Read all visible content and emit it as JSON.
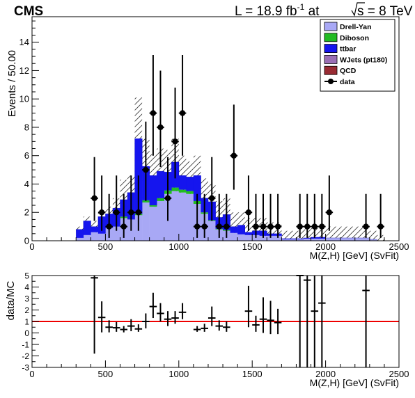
{
  "header": {
    "experiment": "CMS",
    "lumi_prefix": "L = 18.9 fb",
    "lumi_exp": "-1",
    "lumi_mid": " at ",
    "sqrt_s": "s",
    "lumi_suffix": " = 8 TeV"
  },
  "chart_data": [
    {
      "type": "bar",
      "stacked": true,
      "xlabel": "M(Z,H) [GeV] (SvFit)",
      "ylabel": "Events / 50.00",
      "xlim": [
        0,
        2500
      ],
      "ylim": [
        0,
        15.8
      ],
      "x_ticks": [
        0,
        500,
        1000,
        1500,
        2000,
        2500
      ],
      "y_ticks": [
        0,
        2,
        4,
        6,
        8,
        10,
        12,
        14
      ],
      "legend_position": "top-right",
      "colors": {
        "Drell-Yan": "#a8a8f5",
        "Diboson": "#22bb22",
        "ttbar": "#1515ee",
        "WJets (pt180)": "#9b6fb5",
        "QCD": "#992b33",
        "data": "#000000",
        "uncertainty": "#333333"
      },
      "legend": [
        "Drell-Yan",
        "Diboson",
        "ttbar",
        "WJets (pt180)",
        "QCD",
        "data"
      ],
      "bin_edges": [
        200,
        250,
        300,
        350,
        400,
        450,
        500,
        550,
        600,
        650,
        700,
        750,
        800,
        850,
        900,
        950,
        1000,
        1050,
        1100,
        1150,
        1200,
        1250,
        1300,
        1350,
        1400,
        1450,
        1500,
        1550,
        1600,
        1650,
        1700,
        1750,
        1800,
        1850,
        1900,
        1950,
        2000,
        2050,
        2100,
        2150,
        2200,
        2250,
        2300,
        2350,
        2400
      ],
      "series": [
        {
          "name": "Drell-Yan",
          "values": [
            0,
            0,
            0.2,
            0.4,
            0.6,
            0.5,
            0.9,
            1.0,
            1.6,
            1.5,
            1.8,
            2.7,
            2.4,
            2.8,
            3.3,
            3.5,
            3.4,
            3.3,
            2.6,
            1.9,
            1.4,
            0.8,
            0.7,
            0.55,
            0.45,
            0.4,
            0.4,
            0.35,
            0.35,
            0.35,
            0.1,
            0.1,
            0.1,
            0.15,
            0.15,
            0.15,
            0.2,
            0.2,
            0.2,
            0.2,
            0.2,
            0.2,
            0.1,
            0
          ]
        },
        {
          "name": "Diboson",
          "values": [
            0,
            0,
            0,
            0,
            0,
            0,
            0,
            0,
            0.1,
            0,
            0.1,
            0.15,
            0.1,
            0.2,
            0.25,
            0.25,
            0.2,
            0.2,
            0.2,
            0.1,
            0.05,
            0.05,
            0.05,
            0,
            0,
            0,
            0,
            0,
            0,
            0,
            0,
            0,
            0,
            0,
            0,
            0,
            0,
            0,
            0,
            0,
            0,
            0,
            0,
            0
          ]
        },
        {
          "name": "ttbar",
          "values": [
            0,
            0,
            0.6,
            1.0,
            0.4,
            1.2,
            1.0,
            1.3,
            1.2,
            1.9,
            5.3,
            2.4,
            2.1,
            1.9,
            1.3,
            1.8,
            1.0,
            1.0,
            1.8,
            1.0,
            1.3,
            0.8,
            1.1,
            0.45,
            0.65,
            0.2,
            0.3,
            0.35,
            0.15,
            0.15,
            0.05,
            0.05,
            0.05,
            0.05,
            0.1,
            0.1,
            0,
            0,
            0,
            0,
            0,
            0,
            0,
            0
          ]
        },
        {
          "name": "WJets (pt180)",
          "values": [
            0,
            0,
            0,
            0,
            0,
            0,
            0,
            0,
            0,
            0,
            0,
            0,
            0,
            0,
            0,
            0,
            0,
            0,
            0,
            0,
            0,
            0,
            0,
            0,
            0,
            0,
            0,
            0,
            0,
            0,
            0,
            0,
            0,
            0,
            0,
            0,
            0,
            0,
            0,
            0,
            0,
            0,
            0,
            0
          ]
        },
        {
          "name": "QCD",
          "values": [
            0,
            0,
            0,
            0,
            0,
            0,
            0,
            0,
            0,
            0,
            0,
            0,
            0,
            0,
            0,
            0,
            0,
            0,
            0,
            0,
            0,
            0,
            0,
            0,
            0,
            0,
            0,
            0,
            0,
            0,
            0,
            0,
            0,
            0,
            0,
            0,
            0,
            0,
            0,
            0,
            0,
            0,
            0,
            0
          ]
        }
      ],
      "uncertainty_band": {
        "up": [
          0,
          0,
          1.0,
          1.7,
          1.4,
          2.2,
          2.4,
          3.0,
          4.3,
          4.6,
          10.1,
          7.2,
          6.1,
          6.5,
          6.4,
          7.2,
          6.0,
          5.6,
          6.0,
          4.4,
          4.0,
          2.8,
          3.0,
          2.0,
          2.0,
          1.6,
          1.6,
          1.6,
          1.3,
          1.3,
          0.7,
          0.7,
          0.7,
          0.8,
          0.9,
          0.9,
          1.0,
          1.0,
          1.0,
          1.0,
          1.0,
          1.0,
          0.7,
          0.4
        ],
        "down": [
          0,
          0,
          0.4,
          0.7,
          0.5,
          0.7,
          0.9,
          1.0,
          1.2,
          1.4,
          3.0,
          2.2,
          2.2,
          2.6,
          3.0,
          3.2,
          3.0,
          2.9,
          2.6,
          1.9,
          1.4,
          0.8,
          0.8,
          0.5,
          0.5,
          0.3,
          0.4,
          0.3,
          0.2,
          0.2,
          0.05,
          0.05,
          0.05,
          0.1,
          0.1,
          0.1,
          0.1,
          0.1,
          0.1,
          0.1,
          0.1,
          0.1,
          0.05,
          0
        ]
      },
      "data_points": [
        {
          "x": 425,
          "y": 3,
          "err_lo": 1.6,
          "err_hi": 2.9
        },
        {
          "x": 475,
          "y": 2,
          "err_lo": 1.3,
          "err_hi": 2.6
        },
        {
          "x": 525,
          "y": 1,
          "err_lo": 0.8,
          "err_hi": 2.3
        },
        {
          "x": 575,
          "y": 2,
          "err_lo": 1.3,
          "err_hi": 2.6
        },
        {
          "x": 625,
          "y": 1,
          "err_lo": 0.8,
          "err_hi": 2.3
        },
        {
          "x": 675,
          "y": 2,
          "err_lo": 1.3,
          "err_hi": 2.6
        },
        {
          "x": 725,
          "y": 2,
          "err_lo": 1.3,
          "err_hi": 2.6
        },
        {
          "x": 775,
          "y": 5,
          "err_lo": 2.2,
          "err_hi": 3.4
        },
        {
          "x": 825,
          "y": 9,
          "err_lo": 3.0,
          "err_hi": 4.1
        },
        {
          "x": 875,
          "y": 8,
          "err_lo": 2.8,
          "err_hi": 4.0
        },
        {
          "x": 925,
          "y": 3,
          "err_lo": 1.6,
          "err_hi": 2.9
        },
        {
          "x": 975,
          "y": 7,
          "err_lo": 2.6,
          "err_hi": 3.8
        },
        {
          "x": 1025,
          "y": 9,
          "err_lo": 3.0,
          "err_hi": 4.1
        },
        {
          "x": 1125,
          "y": 1,
          "err_lo": 0.8,
          "err_hi": 2.3
        },
        {
          "x": 1175,
          "y": 1,
          "err_lo": 0.8,
          "err_hi": 2.3
        },
        {
          "x": 1225,
          "y": 3,
          "err_lo": 1.6,
          "err_hi": 2.9
        },
        {
          "x": 1275,
          "y": 1,
          "err_lo": 0.8,
          "err_hi": 2.3
        },
        {
          "x": 1325,
          "y": 1,
          "err_lo": 0.8,
          "err_hi": 2.3
        },
        {
          "x": 1375,
          "y": 6,
          "err_lo": 2.4,
          "err_hi": 3.6
        },
        {
          "x": 1475,
          "y": 2,
          "err_lo": 1.3,
          "err_hi": 2.6
        },
        {
          "x": 1525,
          "y": 1,
          "err_lo": 0.8,
          "err_hi": 2.3
        },
        {
          "x": 1575,
          "y": 1,
          "err_lo": 0.8,
          "err_hi": 2.3
        },
        {
          "x": 1625,
          "y": 1,
          "err_lo": 0.8,
          "err_hi": 2.3
        },
        {
          "x": 1675,
          "y": 1,
          "err_lo": 0.8,
          "err_hi": 2.3
        },
        {
          "x": 1825,
          "y": 1,
          "err_lo": 0.8,
          "err_hi": 2.3
        },
        {
          "x": 1875,
          "y": 1,
          "err_lo": 0.8,
          "err_hi": 2.3
        },
        {
          "x": 1925,
          "y": 1,
          "err_lo": 0.8,
          "err_hi": 2.3
        },
        {
          "x": 1975,
          "y": 1,
          "err_lo": 0.8,
          "err_hi": 2.3
        },
        {
          "x": 2025,
          "y": 2,
          "err_lo": 1.3,
          "err_hi": 2.6
        },
        {
          "x": 2275,
          "y": 1,
          "err_lo": 0.8,
          "err_hi": 2.3
        },
        {
          "x": 2375,
          "y": 1,
          "err_lo": 0.8,
          "err_hi": 2.3
        }
      ]
    },
    {
      "type": "scatter",
      "xlabel": "M(Z,H) [GeV] (SvFit)",
      "ylabel": "data/MC",
      "xlim": [
        0,
        2500
      ],
      "ylim": [
        -3,
        5
      ],
      "x_ticks": [
        0,
        500,
        1000,
        1500,
        2000,
        2500
      ],
      "y_ticks": [
        -3,
        -2,
        -1,
        0,
        1,
        2,
        3,
        4,
        5
      ],
      "reference_line": 1,
      "reference_line_color": "#ee0000",
      "points": [
        {
          "x": 425,
          "y": 4.8,
          "err_lo": 6.6,
          "err_hi": 1.0
        },
        {
          "x": 475,
          "y": 1.35,
          "err_lo": 1.3,
          "err_hi": 1.4
        },
        {
          "x": 525,
          "y": 0.5,
          "err_lo": 0.45,
          "err_hi": 0.6
        },
        {
          "x": 575,
          "y": 0.45,
          "err_lo": 0.35,
          "err_hi": 0.5
        },
        {
          "x": 625,
          "y": 0.3,
          "err_lo": 0.25,
          "err_hi": 0.3
        },
        {
          "x": 675,
          "y": 0.6,
          "err_lo": 0.45,
          "err_hi": 0.6
        },
        {
          "x": 725,
          "y": 0.35,
          "err_lo": 0.25,
          "err_hi": 0.4
        },
        {
          "x": 775,
          "y": 1.0,
          "err_lo": 0.6,
          "err_hi": 0.7
        },
        {
          "x": 825,
          "y": 2.3,
          "err_lo": 1.0,
          "err_hi": 1.2
        },
        {
          "x": 875,
          "y": 1.7,
          "err_lo": 0.7,
          "err_hi": 0.9
        },
        {
          "x": 925,
          "y": 1.2,
          "err_lo": 0.6,
          "err_hi": 0.7
        },
        {
          "x": 975,
          "y": 1.3,
          "err_lo": 0.5,
          "err_hi": 0.6
        },
        {
          "x": 1025,
          "y": 1.8,
          "err_lo": 0.6,
          "err_hi": 0.8
        },
        {
          "x": 1125,
          "y": 0.3,
          "err_lo": 0.2,
          "err_hi": 0.3
        },
        {
          "x": 1175,
          "y": 0.4,
          "err_lo": 0.3,
          "err_hi": 0.4
        },
        {
          "x": 1225,
          "y": 1.3,
          "err_lo": 0.7,
          "err_hi": 1.0
        },
        {
          "x": 1275,
          "y": 0.6,
          "err_lo": 0.4,
          "err_hi": 0.5
        },
        {
          "x": 1325,
          "y": 0.5,
          "err_lo": 0.4,
          "err_hi": 0.5
        },
        {
          "x": 1475,
          "y": 1.9,
          "err_lo": 1.4,
          "err_hi": 2.2
        },
        {
          "x": 1525,
          "y": 0.7,
          "err_lo": 0.6,
          "err_hi": 0.8
        },
        {
          "x": 1575,
          "y": 1.2,
          "err_lo": 1.2,
          "err_hi": 1.9
        },
        {
          "x": 1625,
          "y": 1.1,
          "err_lo": 1.2,
          "err_hi": 1.7
        },
        {
          "x": 1675,
          "y": 0.9,
          "err_lo": 1.0,
          "err_hi": 1.2
        },
        {
          "x": 1825,
          "y": 5.0,
          "err_lo": 8.0,
          "err_hi": 0.0
        },
        {
          "x": 1875,
          "y": 4.6,
          "err_lo": 7.6,
          "err_hi": 0.4
        },
        {
          "x": 1925,
          "y": 1.9,
          "err_lo": 4.9,
          "err_hi": 3.1
        },
        {
          "x": 1975,
          "y": 2.6,
          "err_lo": 5.6,
          "err_hi": 2.4
        },
        {
          "x": 2275,
          "y": 3.7,
          "err_lo": 6.7,
          "err_hi": 1.3
        }
      ]
    }
  ]
}
